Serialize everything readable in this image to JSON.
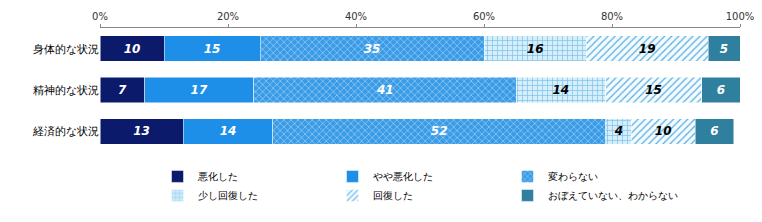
{
  "chart_data": {
    "type": "bar",
    "orientation": "horizontal",
    "stacked": true,
    "data_labels": true,
    "grid": false,
    "legend": "bottom",
    "categories": [
      "身体的な状況",
      "精神的な状況",
      "経済的な状況"
    ],
    "series": [
      {
        "name": "悪化した",
        "color": "#0b1a6b",
        "values": [
          10,
          7,
          13
        ]
      },
      {
        "name": "やや悪化した",
        "color": "#1e8fe8",
        "values": [
          15,
          17,
          14
        ]
      },
      {
        "name": "変わらない",
        "color": "#3a9be6",
        "values": [
          35,
          41,
          52
        ]
      },
      {
        "name": "少し回復した",
        "color": "#d4eefa",
        "values": [
          16,
          14,
          4
        ]
      },
      {
        "name": "回復した",
        "color": "#f4fbfe",
        "values": [
          19,
          15,
          10
        ]
      },
      {
        "name": "おぼえていない、わからない",
        "color": "#2f7f9f",
        "values": [
          5,
          6,
          6
        ]
      }
    ],
    "xlim": [
      0,
      100
    ],
    "xticks": [
      {
        "value": 0,
        "label": "0%"
      },
      {
        "value": 20,
        "label": "20%"
      },
      {
        "value": 40,
        "label": "40%"
      },
      {
        "value": 60,
        "label": "60%"
      },
      {
        "value": 80,
        "label": "80%"
      },
      {
        "value": 100,
        "label": "100%"
      }
    ]
  }
}
